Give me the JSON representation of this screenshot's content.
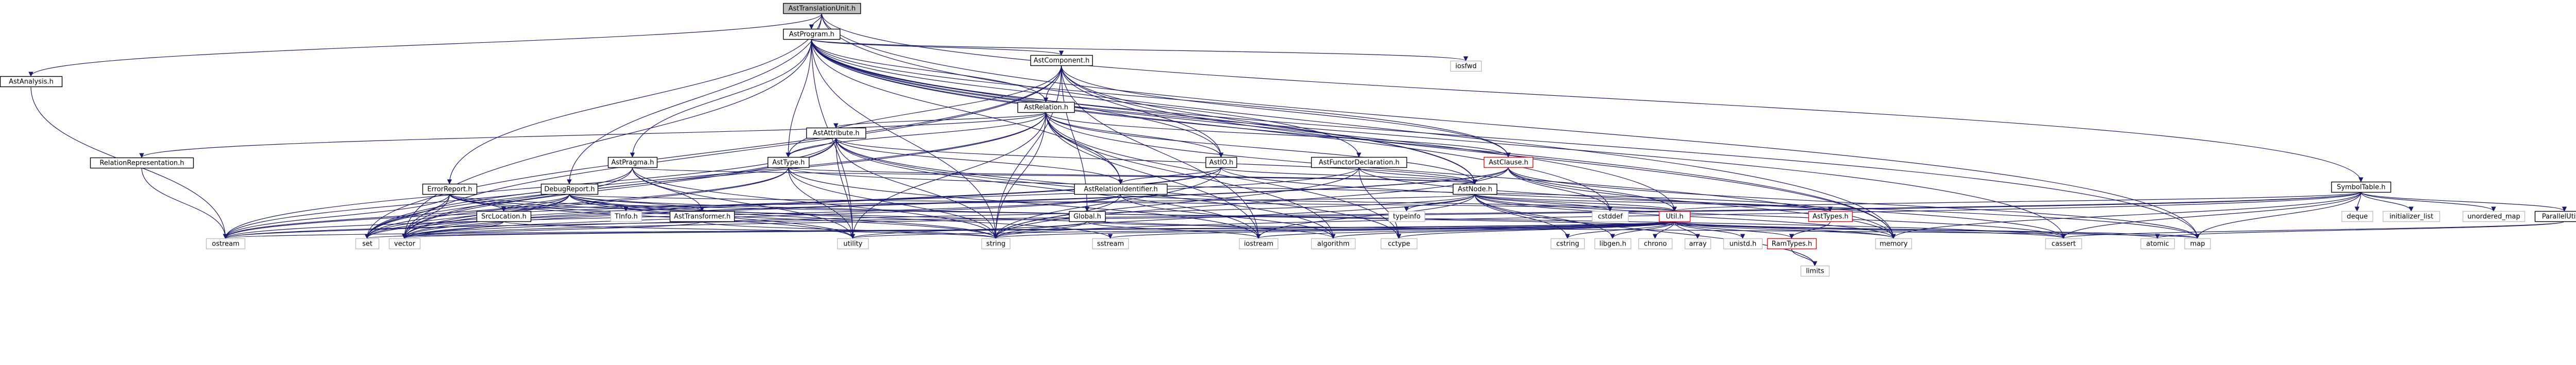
{
  "colors": {
    "root_fill": "#bfbfbf",
    "root_stroke": "#000000",
    "doc_fill": "#ffffff",
    "doc_stroke": "#000000",
    "sys_fill": "#ffffff",
    "sys_stroke": "#bfbfbf",
    "trunc_stroke": "#ff0000",
    "edge": "#191970"
  },
  "nodes": {
    "root": {
      "label": "AstTranslationUnit.h",
      "kind": "root"
    },
    "astprogram": {
      "label": "AstProgram.h",
      "kind": "doc"
    },
    "astanalysis": {
      "label": "AstAnalysis.h",
      "kind": "doc"
    },
    "symboltable": {
      "label": "SymbolTable.h",
      "kind": "doc"
    },
    "astcomponent": {
      "label": "AstComponent.h",
      "kind": "doc"
    },
    "astrelation": {
      "label": "AstRelation.h",
      "kind": "doc"
    },
    "relrep": {
      "label": "RelationRepresentation.h",
      "kind": "doc"
    },
    "astattribute": {
      "label": "AstAttribute.h",
      "kind": "doc"
    },
    "astpragma": {
      "label": "AstPragma.h",
      "kind": "doc"
    },
    "asttype": {
      "label": "AstType.h",
      "kind": "doc"
    },
    "astio": {
      "label": "AstIO.h",
      "kind": "doc"
    },
    "astfunctor": {
      "label": "AstFunctorDeclaration.h",
      "kind": "doc"
    },
    "astclause": {
      "label": "AstClause.h",
      "kind": "trunc"
    },
    "errorreport": {
      "label": "ErrorReport.h",
      "kind": "doc"
    },
    "debugreport": {
      "label": "DebugReport.h",
      "kind": "doc"
    },
    "astrelid": {
      "label": "AstRelationIdentifier.h",
      "kind": "doc"
    },
    "astnode": {
      "label": "AstNode.h",
      "kind": "doc"
    },
    "srclocation": {
      "label": "SrcLocation.h",
      "kind": "doc"
    },
    "tinfo": {
      "label": "TInfo.h",
      "kind": "sys"
    },
    "asttransformer": {
      "label": "AstTransformer.h",
      "kind": "doc"
    },
    "global": {
      "label": "Global.h",
      "kind": "doc"
    },
    "typeinfo": {
      "label": "typeinfo",
      "kind": "sys"
    },
    "cstddef": {
      "label": "cstddef",
      "kind": "sys"
    },
    "utilh": {
      "label": "Util.h",
      "kind": "trunc"
    },
    "asttypes": {
      "label": "AstTypes.h",
      "kind": "trunc"
    },
    "ramtypes": {
      "label": "RamTypes.h",
      "kind": "trunc"
    },
    "paralleltils": {
      "label": "ParallelUtils.h",
      "kind": "doc"
    },
    "deque": {
      "label": "deque",
      "kind": "sys"
    },
    "initlist": {
      "label": "initializer_list",
      "kind": "sys"
    },
    "unordmap": {
      "label": "unordered_map",
      "kind": "sys"
    },
    "iosfwd": {
      "label": "iosfwd",
      "kind": "sys"
    },
    "ostream": {
      "label": "ostream",
      "kind": "sys"
    },
    "set": {
      "label": "set",
      "kind": "sys"
    },
    "vector": {
      "label": "vector",
      "kind": "sys"
    },
    "utility": {
      "label": "utility",
      "kind": "sys"
    },
    "string": {
      "label": "string",
      "kind": "sys"
    },
    "sstream": {
      "label": "sstream",
      "kind": "sys"
    },
    "iostream": {
      "label": "iostream",
      "kind": "sys"
    },
    "algorithm": {
      "label": "algorithm",
      "kind": "sys"
    },
    "cctype": {
      "label": "cctype",
      "kind": "sys"
    },
    "cstring": {
      "label": "cstring",
      "kind": "sys"
    },
    "libgen": {
      "label": "libgen.h",
      "kind": "sys"
    },
    "chrono": {
      "label": "chrono",
      "kind": "sys"
    },
    "array": {
      "label": "array",
      "kind": "sys"
    },
    "unistd": {
      "label": "unistd.h",
      "kind": "sys"
    },
    "memory": {
      "label": "memory",
      "kind": "sys"
    },
    "cassert": {
      "label": "cassert",
      "kind": "sys"
    },
    "atomic": {
      "label": "atomic",
      "kind": "sys"
    },
    "map": {
      "label": "map",
      "kind": "sys"
    },
    "limits": {
      "label": "limits",
      "kind": "sys"
    }
  },
  "edges": [
    [
      "root",
      "astprogram"
    ],
    [
      "root",
      "astanalysis"
    ],
    [
      "root",
      "symboltable"
    ],
    [
      "root",
      "errorreport"
    ],
    [
      "root",
      "debugreport"
    ],
    [
      "root",
      "memory"
    ],
    [
      "root",
      "map"
    ],
    [
      "astanalysis",
      "ostream"
    ],
    [
      "astprogram",
      "astcomponent"
    ],
    [
      "astprogram",
      "astrelation"
    ],
    [
      "astprogram",
      "astpragma"
    ],
    [
      "astprogram",
      "asttype"
    ],
    [
      "astprogram",
      "astio"
    ],
    [
      "astprogram",
      "astfunctor"
    ],
    [
      "astprogram",
      "astclause"
    ],
    [
      "astprogram",
      "astrelid"
    ],
    [
      "astprogram",
      "astnode"
    ],
    [
      "astprogram",
      "iosfwd"
    ],
    [
      "astprogram",
      "utilh"
    ],
    [
      "astprogram",
      "vector"
    ],
    [
      "astprogram",
      "utility"
    ],
    [
      "astprogram",
      "string"
    ],
    [
      "astprogram",
      "memory"
    ],
    [
      "astprogram",
      "cassert"
    ],
    [
      "astprogram",
      "map"
    ],
    [
      "astprogram",
      "cstddef"
    ],
    [
      "astcomponent",
      "astrelation"
    ],
    [
      "astcomponent",
      "asttype"
    ],
    [
      "astcomponent",
      "astio"
    ],
    [
      "astcomponent",
      "astclause"
    ],
    [
      "astcomponent",
      "astnode"
    ],
    [
      "astcomponent",
      "vector"
    ],
    [
      "astcomponent",
      "set"
    ],
    [
      "astcomponent",
      "string"
    ],
    [
      "astcomponent",
      "memory"
    ],
    [
      "astcomponent",
      "global"
    ],
    [
      "astcomponent",
      "iostream"
    ],
    [
      "astrelation",
      "relrep"
    ],
    [
      "astrelation",
      "astattribute"
    ],
    [
      "astrelation",
      "asttype"
    ],
    [
      "astrelation",
      "astio"
    ],
    [
      "astrelation",
      "astclause"
    ],
    [
      "astrelation",
      "astrelid"
    ],
    [
      "astrelation",
      "astnode"
    ],
    [
      "astrelation",
      "set"
    ],
    [
      "astrelation",
      "vector"
    ],
    [
      "astrelation",
      "string"
    ],
    [
      "astrelation",
      "utility"
    ],
    [
      "astrelation",
      "iostream"
    ],
    [
      "astrelation",
      "cctype"
    ],
    [
      "astrelation",
      "memory"
    ],
    [
      "astrelation",
      "algorithm"
    ],
    [
      "relrep",
      "ostream"
    ],
    [
      "astattribute",
      "asttype"
    ],
    [
      "astattribute",
      "astnode"
    ],
    [
      "astattribute",
      "astrelid"
    ],
    [
      "astattribute",
      "set"
    ],
    [
      "astattribute",
      "vector"
    ],
    [
      "astattribute",
      "utility"
    ],
    [
      "astattribute",
      "string"
    ],
    [
      "astattribute",
      "iostream"
    ],
    [
      "astattribute",
      "algorithm"
    ],
    [
      "astattribute",
      "cctype"
    ],
    [
      "astattribute",
      "ostream"
    ],
    [
      "astpragma",
      "astnode"
    ],
    [
      "astpragma",
      "asttransformer"
    ],
    [
      "astpragma",
      "string"
    ],
    [
      "astpragma",
      "utility"
    ],
    [
      "astpragma",
      "ostream"
    ],
    [
      "astpragma",
      "set"
    ],
    [
      "asttype",
      "astnode"
    ],
    [
      "asttype",
      "asttypes"
    ],
    [
      "asttype",
      "set"
    ],
    [
      "asttype",
      "vector"
    ],
    [
      "asttype",
      "string"
    ],
    [
      "asttype",
      "utility"
    ],
    [
      "asttype",
      "iostream"
    ],
    [
      "astio",
      "astnode"
    ],
    [
      "astio",
      "astrelid"
    ],
    [
      "astio",
      "map"
    ],
    [
      "astio",
      "string"
    ],
    [
      "astio",
      "vector"
    ],
    [
      "astio",
      "set"
    ],
    [
      "astfunctor",
      "astnode"
    ],
    [
      "astfunctor",
      "ostream"
    ],
    [
      "astfunctor",
      "string"
    ],
    [
      "astfunctor",
      "cassert"
    ],
    [
      "astfunctor",
      "cctype"
    ],
    [
      "astclause",
      "astnode"
    ],
    [
      "astclause",
      "utilh"
    ],
    [
      "astclause",
      "memory"
    ],
    [
      "astclause",
      "vector"
    ],
    [
      "astclause",
      "string"
    ],
    [
      "astclause",
      "set"
    ],
    [
      "astclause",
      "cstddef"
    ],
    [
      "astclause",
      "map"
    ],
    [
      "errorreport",
      "srclocation"
    ],
    [
      "errorreport",
      "set"
    ],
    [
      "errorreport",
      "vector"
    ],
    [
      "errorreport",
      "string"
    ],
    [
      "errorreport",
      "ostream"
    ],
    [
      "errorreport",
      "utility"
    ],
    [
      "errorreport",
      "algorithm"
    ],
    [
      "errorreport",
      "cassert"
    ],
    [
      "debugreport",
      "asttransformer"
    ],
    [
      "debugreport",
      "tinfo"
    ],
    [
      "debugreport",
      "srclocation"
    ],
    [
      "debugreport",
      "set"
    ],
    [
      "debugreport",
      "vector"
    ],
    [
      "debugreport",
      "string"
    ],
    [
      "debugreport",
      "ostream"
    ],
    [
      "debugreport",
      "sstream"
    ],
    [
      "debugreport",
      "utility"
    ],
    [
      "debugreport",
      "utilh"
    ],
    [
      "debugreport",
      "memory"
    ],
    [
      "astrelid",
      "utilh"
    ],
    [
      "astrelid",
      "vector"
    ],
    [
      "astrelid",
      "string"
    ],
    [
      "astrelid",
      "ostream"
    ],
    [
      "astrelid",
      "algorithm"
    ],
    [
      "astnode",
      "srclocation"
    ],
    [
      "astnode",
      "typeinfo"
    ],
    [
      "astnode",
      "cstddef"
    ],
    [
      "astnode",
      "utilh"
    ],
    [
      "astnode",
      "memory"
    ],
    [
      "astnode",
      "string"
    ],
    [
      "astnode",
      "vector"
    ],
    [
      "astnode",
      "iostream"
    ],
    [
      "astnode",
      "cassert"
    ],
    [
      "astnode",
      "asttypes"
    ],
    [
      "astnode",
      "cstring"
    ],
    [
      "astnode",
      "libgen"
    ],
    [
      "astnode",
      "limits"
    ],
    [
      "srclocation",
      "string"
    ],
    [
      "srclocation",
      "ostream"
    ],
    [
      "srclocation",
      "vector"
    ],
    [
      "asttransformer",
      "string"
    ],
    [
      "asttransformer",
      "vector"
    ],
    [
      "global",
      "string"
    ],
    [
      "global",
      "map"
    ],
    [
      "global",
      "iostream"
    ],
    [
      "global",
      "utility"
    ],
    [
      "utilh",
      "ramtypes"
    ],
    [
      "utilh",
      "cctype"
    ],
    [
      "utilh",
      "cstring"
    ],
    [
      "utilh",
      "libgen"
    ],
    [
      "utilh",
      "chrono"
    ],
    [
      "utilh",
      "array"
    ],
    [
      "utilh",
      "unistd"
    ],
    [
      "utilh",
      "algorithm"
    ],
    [
      "utilh",
      "memory"
    ],
    [
      "utilh",
      "cassert"
    ],
    [
      "utilh",
      "atomic"
    ],
    [
      "utilh",
      "map"
    ],
    [
      "utilh",
      "iostream"
    ],
    [
      "utilh",
      "sstream"
    ],
    [
      "utilh",
      "string"
    ],
    [
      "utilh",
      "utility"
    ],
    [
      "utilh",
      "vector"
    ],
    [
      "utilh",
      "set"
    ],
    [
      "utilh",
      "ostream"
    ],
    [
      "asttypes",
      "ramtypes"
    ],
    [
      "ramtypes",
      "limits"
    ],
    [
      "symboltable",
      "paralleltils"
    ],
    [
      "symboltable",
      "deque"
    ],
    [
      "symboltable",
      "initlist"
    ],
    [
      "symboltable",
      "unordmap"
    ],
    [
      "symboltable",
      "utilh"
    ],
    [
      "symboltable",
      "string"
    ],
    [
      "symboltable",
      "cassert"
    ],
    [
      "symboltable",
      "map"
    ],
    [
      "symboltable",
      "memory"
    ],
    [
      "symboltable",
      "vector"
    ],
    [
      "symboltable",
      "ostream"
    ],
    [
      "paralleltils",
      "atomic"
    ],
    [
      "paralleltils",
      "cassert"
    ]
  ]
}
